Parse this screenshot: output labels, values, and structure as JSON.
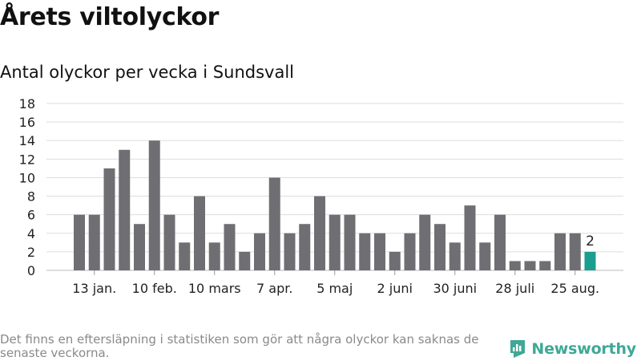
{
  "header": {
    "title": "Årets viltolyckor",
    "subtitle": "Antal olyckor per vecka i Sundsvall"
  },
  "footer": {
    "note": "Det finns en eftersläpning i statistiken som gör att några olyckor kan saknas de senaste veckorna.",
    "logo_text": "Newsworthy",
    "logo_icon": "bar-chart-logo-icon"
  },
  "colors": {
    "bar": "#6f6f73",
    "highlight": "#1a9e8f",
    "grid": "#dddddd",
    "logo": "#3fa896"
  },
  "chart_data": {
    "type": "bar",
    "title": "Antal olyckor per vecka i Sundsvall",
    "xlabel": "",
    "ylabel": "",
    "ylim": [
      0,
      18
    ],
    "yticks": [
      0,
      2,
      4,
      6,
      8,
      10,
      12,
      14,
      16,
      18
    ],
    "grid": true,
    "x_tick_labels": [
      {
        "index": 1,
        "label": "13 jan."
      },
      {
        "index": 5,
        "label": "10 feb."
      },
      {
        "index": 9,
        "label": "10 mars"
      },
      {
        "index": 13,
        "label": "7 apr."
      },
      {
        "index": 17,
        "label": "5 maj"
      },
      {
        "index": 21,
        "label": "2 juni"
      },
      {
        "index": 25,
        "label": "30 juni"
      },
      {
        "index": 29,
        "label": "28 juli"
      },
      {
        "index": 33,
        "label": "25 aug."
      }
    ],
    "values": [
      6,
      6,
      11,
      13,
      5,
      14,
      6,
      3,
      8,
      3,
      5,
      2,
      4,
      10,
      4,
      5,
      8,
      6,
      6,
      4,
      4,
      2,
      4,
      6,
      5,
      3,
      7,
      3,
      6,
      1,
      1,
      1,
      4,
      4,
      2
    ],
    "highlight_index": 34,
    "highlight_label": "2"
  }
}
